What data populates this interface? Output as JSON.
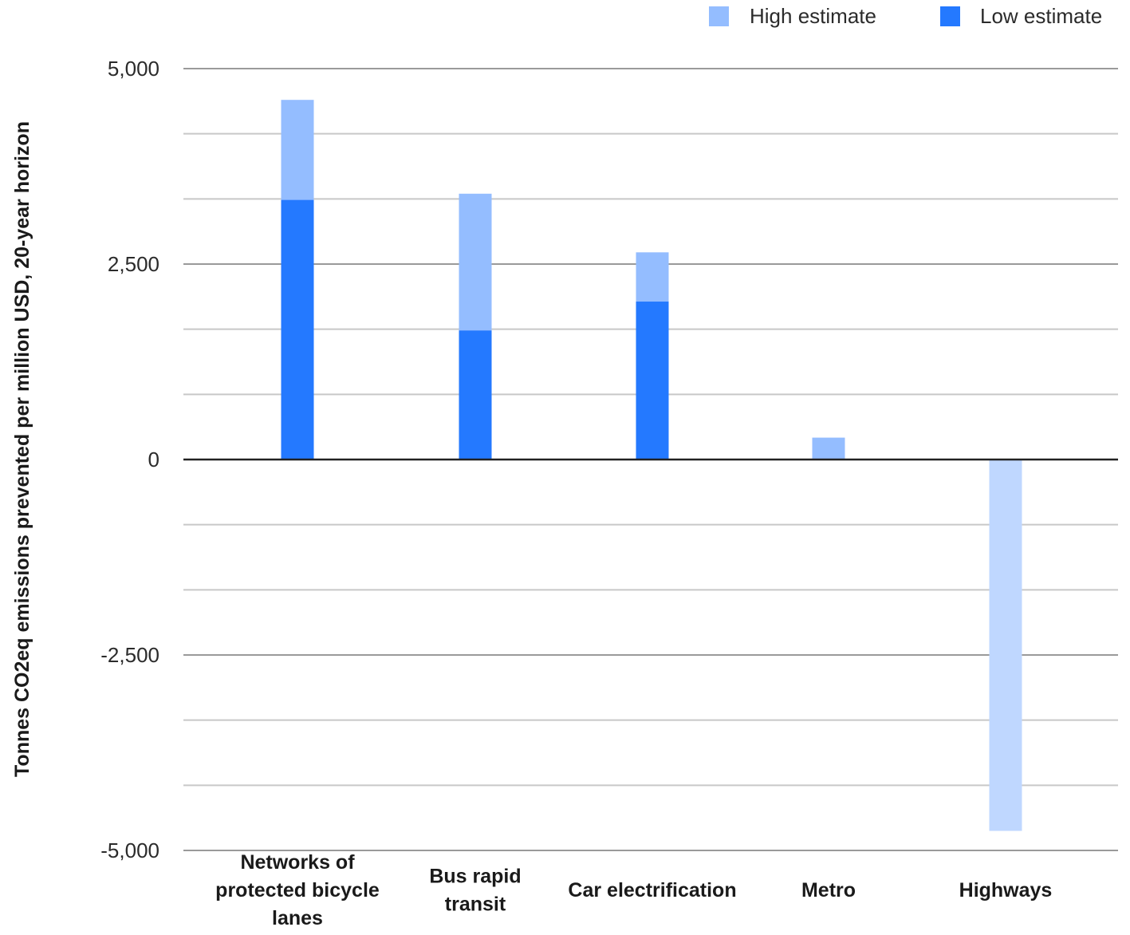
{
  "chart_data": {
    "type": "bar",
    "title": "",
    "xlabel": "",
    "ylabel": "Tonnes CO2eq emissions prevented per million USD, 20-year horizon",
    "ylim": [
      -5000,
      5000
    ],
    "yticks": [
      {
        "value": 5000,
        "label": "5,000"
      },
      {
        "value": 2500,
        "label": "2,500"
      },
      {
        "value": 0,
        "label": "0"
      },
      {
        "value": -2500,
        "label": "-2,500"
      },
      {
        "value": -5000,
        "label": "-5,000"
      }
    ],
    "minor_gridlines": [
      4166.67,
      3333.33,
      1666.67,
      833.33,
      -833.33,
      -1666.67,
      -3333.33,
      -4166.67
    ],
    "grid": true,
    "legend_position": "top-right",
    "categories": [
      [
        "Networks of",
        "protected bicycle",
        "lanes"
      ],
      [
        "Bus rapid",
        "transit"
      ],
      [
        "Car electrification"
      ],
      [
        "Metro"
      ],
      [
        "Highways"
      ]
    ],
    "series": [
      {
        "name": "High estimate",
        "color": "#94bdff",
        "values": [
          4600,
          3400,
          2650,
          280,
          -4750
        ]
      },
      {
        "name": "Low estimate",
        "color": "#2479ff",
        "values": [
          3320,
          1650,
          2020,
          0,
          0
        ]
      }
    ],
    "negative_high_color": "#bfd7ff",
    "zero_line_color": "#222222",
    "grid_color": "#c8c8c8"
  }
}
